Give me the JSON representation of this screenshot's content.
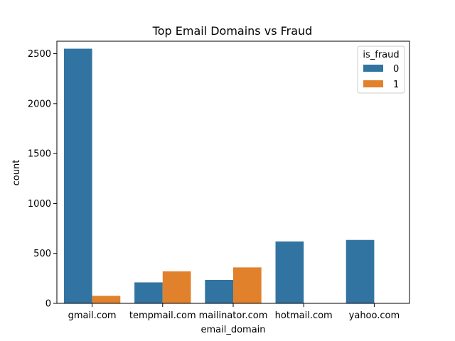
{
  "chart_data": {
    "type": "bar",
    "title": "Top Email Domains vs Fraud",
    "xlabel": "email_domain",
    "ylabel": "count",
    "categories": [
      "gmail.com",
      "tempmail.com",
      "mailinator.com",
      "hotmail.com",
      "yahoo.com"
    ],
    "series": [
      {
        "name": "0",
        "values": [
          2550,
          210,
          235,
          620,
          635
        ],
        "color": "#3274a1"
      },
      {
        "name": "1",
        "values": [
          75,
          320,
          360,
          0,
          0
        ],
        "color": "#e1812c"
      }
    ],
    "ylim": [
      0,
      2625
    ],
    "yticks": [
      0,
      500,
      1000,
      1500,
      2000,
      2500
    ],
    "legend": {
      "title": "is_fraud",
      "placement": "top-right"
    },
    "grid": false
  }
}
